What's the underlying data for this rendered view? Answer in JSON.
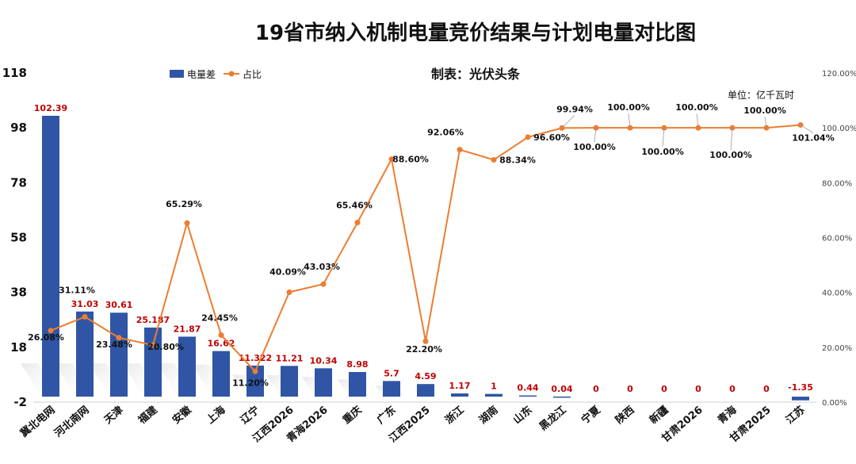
{
  "title": "19省市纳入机制电量竞价结果与计划电量对比图",
  "source_note": "制表：光伏头条",
  "unit_note": "单位：亿千瓦时",
  "colors": {
    "bar": "#2f55a4",
    "line": "#ed7d31",
    "bar_label": "#c00000"
  },
  "chart_data": {
    "type": "bar",
    "title": "19省市纳入机制电量竞价结果与计划电量对比图",
    "categories": [
      "冀北电网",
      "河北南网",
      "天津",
      "福建",
      "安徽",
      "上海",
      "辽宁",
      "江西2026",
      "青海2026",
      "重庆",
      "广东",
      "江西2025",
      "浙江",
      "湖南",
      "山东",
      "黑龙江",
      "宁夏",
      "陕西",
      "新疆",
      "甘肃2026",
      "青海",
      "甘肃2025",
      "江苏"
    ],
    "series": [
      {
        "name": "电量差",
        "type": "bar",
        "axis": "left",
        "values": [
          102.39,
          31.03,
          30.61,
          25.187,
          21.87,
          16.62,
          11.322,
          11.21,
          10.34,
          8.98,
          5.7,
          4.59,
          1.17,
          1,
          0.44,
          0.04,
          0,
          0,
          0,
          0,
          0,
          0,
          -1.35
        ],
        "labels": [
          "102.39",
          "31.03",
          "30.61",
          "25.187",
          "21.87",
          "16.62",
          "11.322",
          "11.21",
          "10.34",
          "8.98",
          "5.7",
          "4.59",
          "1.17",
          "1",
          "0.44",
          "0.04",
          "0",
          "0",
          "0",
          "0",
          "0",
          "0",
          "-1.35"
        ]
      },
      {
        "name": "占比",
        "type": "line",
        "axis": "right",
        "values": [
          26.08,
          31.11,
          23.48,
          20.8,
          65.29,
          24.45,
          11.2,
          40.09,
          43.03,
          65.46,
          88.6,
          22.2,
          92.06,
          88.34,
          96.6,
          99.94,
          100.0,
          100.0,
          100.0,
          100.0,
          100.0,
          100.0,
          101.04
        ],
        "labels": [
          "26.08%",
          "31.11%",
          "23.48%",
          "20.80%",
          "65.29%",
          "24.45%",
          "11.20%",
          "40.09%",
          "43.03%",
          "65.46%",
          "88.60%",
          "22.20%",
          "92.06%",
          "88.34%",
          "96.60%",
          "99.94%",
          "100.00%",
          "100.00%",
          "100.00%",
          "100.00%",
          "100.00%",
          "100.00%",
          "101.04%"
        ]
      }
    ],
    "y_left": {
      "ylim": [
        -2,
        118
      ],
      "ticks": [
        "118",
        "98",
        "78",
        "58",
        "38",
        "18",
        "-2"
      ]
    },
    "y_right": {
      "ylim": [
        0,
        120
      ],
      "ticks": [
        "120.00%",
        "100.00%",
        "80.00%",
        "60.00%",
        "40.00%",
        "20.00%",
        "0.00%"
      ]
    },
    "legend": [
      "电量差",
      "占比"
    ],
    "legend_position": "top-left",
    "grid": false
  }
}
